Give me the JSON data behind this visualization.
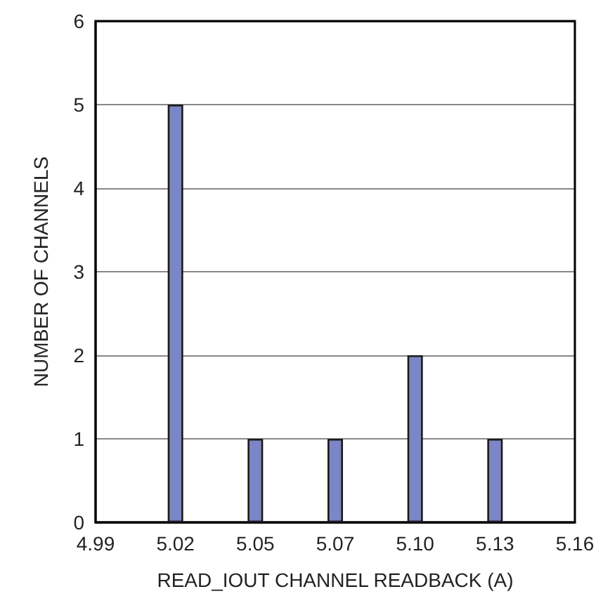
{
  "chart_data": {
    "type": "bar",
    "xlabel": "READ_IOUT CHANNEL READBACK (A)",
    "ylabel": "NUMBER OF CHANNELS",
    "categories": [
      "4.99",
      "5.02",
      "5.05",
      "5.07",
      "5.10",
      "5.13",
      "5.16"
    ],
    "values": [
      0,
      5,
      1,
      1,
      2,
      1,
      0
    ],
    "color": "#7d86c4",
    "ylim": [
      0,
      6
    ],
    "yticks": [
      0,
      1,
      2,
      3,
      4,
      5,
      6
    ],
    "grid": "y"
  }
}
